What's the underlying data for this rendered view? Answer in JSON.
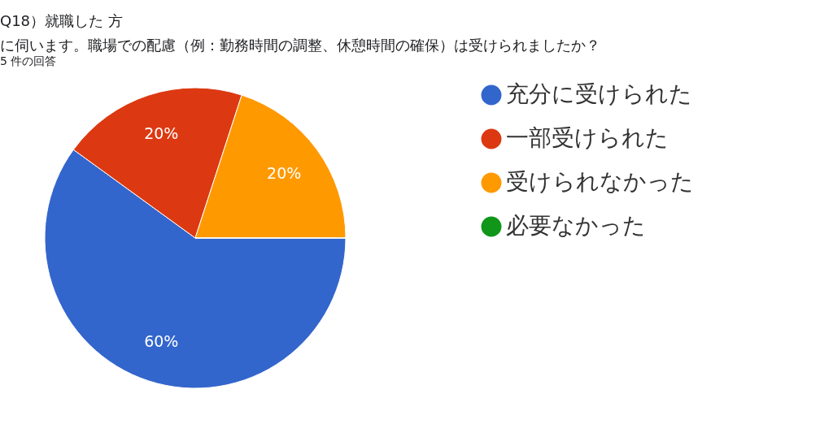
{
  "chart_data": {
    "type": "pie",
    "title": [
      "Q18）就職した 方",
      "に伺います。職場での配慮（例：勤務時間の調整、休憩時間の確保）は受けられましたか？"
    ],
    "subtitle": "5 件の回答",
    "categories": [
      "充分に受けられた",
      "一部受けられた",
      "受けられなかった",
      "必要なかった"
    ],
    "values": [
      60,
      20,
      20,
      0
    ],
    "colors": [
      "#3366cc",
      "#dc3912",
      "#ff9900",
      "#109618"
    ],
    "value_labels": [
      "60%",
      "20%",
      "20%",
      null
    ],
    "legend": "right"
  }
}
